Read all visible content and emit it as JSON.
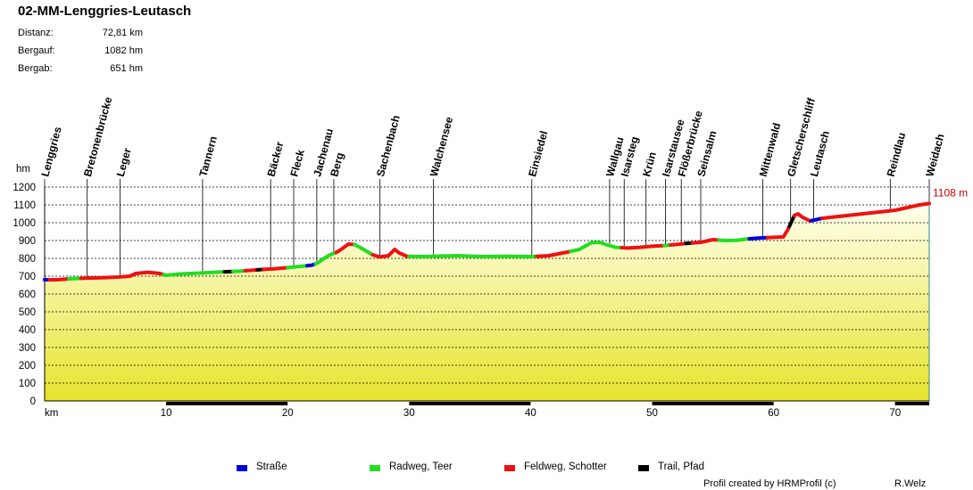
{
  "title": "02-MM-Lenggries-Leutasch",
  "stats": [
    {
      "label": "Distanz:",
      "value": "72,81 km"
    },
    {
      "label": "Bergauf:",
      "value": "1082 hm"
    },
    {
      "label": "Bergab:",
      "value": "651 hm"
    }
  ],
  "colors": {
    "strasse": "#0000dd",
    "radweg": "#22dd22",
    "feldweg": "#ee1111",
    "trail": "#000000",
    "end_label": "#cc0000",
    "fill_top": "#ffffee",
    "fill_bottom": "#e6e42c"
  },
  "chart_data": {
    "type": "area",
    "xlabel": "km",
    "ylabel": "hm",
    "xlim": [
      0,
      72.81
    ],
    "ylim": [
      0,
      1200
    ],
    "x_ticks": [
      10,
      20,
      30,
      40,
      50,
      60,
      70
    ],
    "y_ticks": [
      0,
      100,
      200,
      300,
      400,
      500,
      600,
      700,
      800,
      900,
      1000,
      1100,
      1200
    ],
    "grid": true,
    "end_label": "1108 m",
    "profile": [
      [
        0,
        680
      ],
      [
        1,
        680
      ],
      [
        2,
        685
      ],
      [
        3,
        688
      ],
      [
        4,
        690
      ],
      [
        5,
        692
      ],
      [
        6,
        695
      ],
      [
        7,
        700
      ],
      [
        7.5,
        715
      ],
      [
        8.5,
        722
      ],
      [
        9.5,
        715
      ],
      [
        10,
        705
      ],
      [
        11,
        712
      ],
      [
        12,
        715
      ],
      [
        13,
        718
      ],
      [
        14,
        722
      ],
      [
        15,
        725
      ],
      [
        16,
        728
      ],
      [
        17,
        733
      ],
      [
        18,
        738
      ],
      [
        19,
        742
      ],
      [
        20,
        748
      ],
      [
        21,
        755
      ],
      [
        22,
        762
      ],
      [
        22.5,
        775
      ],
      [
        23,
        800
      ],
      [
        23.5,
        820
      ],
      [
        24,
        833
      ],
      [
        24.5,
        855
      ],
      [
        25,
        880
      ],
      [
        25.5,
        878
      ],
      [
        26,
        860
      ],
      [
        26.5,
        840
      ],
      [
        27,
        820
      ],
      [
        27.6,
        808
      ],
      [
        28.3,
        815
      ],
      [
        28.8,
        850
      ],
      [
        29.2,
        830
      ],
      [
        29.8,
        812
      ],
      [
        31,
        810
      ],
      [
        32,
        812
      ],
      [
        34,
        815
      ],
      [
        36,
        810
      ],
      [
        38,
        812
      ],
      [
        40,
        810
      ],
      [
        41.5,
        815
      ],
      [
        43,
        835
      ],
      [
        44,
        850
      ],
      [
        45,
        888
      ],
      [
        45.7,
        890
      ],
      [
        46.3,
        875
      ],
      [
        47,
        862
      ],
      [
        48,
        858
      ],
      [
        49,
        862
      ],
      [
        50,
        868
      ],
      [
        51,
        872
      ],
      [
        52,
        878
      ],
      [
        53,
        885
      ],
      [
        54,
        890
      ],
      [
        55,
        905
      ],
      [
        56,
        900
      ],
      [
        57,
        902
      ],
      [
        58,
        910
      ],
      [
        59,
        915
      ],
      [
        60,
        918
      ],
      [
        60.8,
        920
      ],
      [
        61.2,
        965
      ],
      [
        61.7,
        1040
      ],
      [
        62,
        1050
      ],
      [
        62.4,
        1030
      ],
      [
        63,
        1010
      ],
      [
        64,
        1025
      ],
      [
        66,
        1040
      ],
      [
        68,
        1055
      ],
      [
        70,
        1070
      ],
      [
        71,
        1085
      ],
      [
        72,
        1100
      ],
      [
        72.81,
        1108
      ]
    ],
    "segments": [
      {
        "type": "strasse",
        "from": 0,
        "to": 0.4
      },
      {
        "type": "feldweg",
        "from": 0.4,
        "to": 2
      },
      {
        "type": "radweg",
        "from": 2,
        "to": 3
      },
      {
        "type": "feldweg",
        "from": 3,
        "to": 7.5
      },
      {
        "type": "feldweg",
        "from": 7.5,
        "to": 9.8
      },
      {
        "type": "radweg",
        "from": 9.8,
        "to": 14.8
      },
      {
        "type": "trail",
        "from": 14.8,
        "to": 15.5
      },
      {
        "type": "radweg",
        "from": 15.5,
        "to": 16.5
      },
      {
        "type": "feldweg",
        "from": 16.5,
        "to": 17.5
      },
      {
        "type": "trail",
        "from": 17.5,
        "to": 18
      },
      {
        "type": "feldweg",
        "from": 18,
        "to": 20
      },
      {
        "type": "radweg",
        "from": 20,
        "to": 21.6
      },
      {
        "type": "strasse",
        "from": 21.6,
        "to": 22.3
      },
      {
        "type": "radweg",
        "from": 22.3,
        "to": 24
      },
      {
        "type": "feldweg",
        "from": 24,
        "to": 25.5
      },
      {
        "type": "radweg",
        "from": 25.5,
        "to": 27
      },
      {
        "type": "feldweg",
        "from": 27,
        "to": 30
      },
      {
        "type": "radweg",
        "from": 30,
        "to": 40.5
      },
      {
        "type": "feldweg",
        "from": 40.5,
        "to": 43.3
      },
      {
        "type": "radweg",
        "from": 43.3,
        "to": 47.5
      },
      {
        "type": "feldweg",
        "from": 47.5,
        "to": 51
      },
      {
        "type": "radweg",
        "from": 51,
        "to": 51.5
      },
      {
        "type": "feldweg",
        "from": 51.5,
        "to": 52.8
      },
      {
        "type": "trail",
        "from": 52.8,
        "to": 53.3
      },
      {
        "type": "feldweg",
        "from": 53.3,
        "to": 55.5
      },
      {
        "type": "radweg",
        "from": 55.5,
        "to": 58
      },
      {
        "type": "strasse",
        "from": 58,
        "to": 59.5
      },
      {
        "type": "feldweg",
        "from": 59.5,
        "to": 61.3
      },
      {
        "type": "trail",
        "from": 61.3,
        "to": 61.7
      },
      {
        "type": "feldweg",
        "from": 61.7,
        "to": 63.1
      },
      {
        "type": "strasse",
        "from": 63.1,
        "to": 64
      },
      {
        "type": "feldweg",
        "from": 64,
        "to": 72.81
      }
    ],
    "waypoints": [
      {
        "name": "Lenggries",
        "km": 0
      },
      {
        "name": "Bretonenbrücke",
        "km": 3.5
      },
      {
        "name": "Leger",
        "km": 6.2
      },
      {
        "name": "Tannern",
        "km": 13
      },
      {
        "name": "Bäcker",
        "km": 18.6
      },
      {
        "name": "Fleck",
        "km": 20.5
      },
      {
        "name": "Jachenau",
        "km": 22.4
      },
      {
        "name": "Berg",
        "km": 23.8
      },
      {
        "name": "Sachenbach",
        "km": 27.6
      },
      {
        "name": "Walchensee",
        "km": 32
      },
      {
        "name": "Einsiedel",
        "km": 40.1
      },
      {
        "name": "Wallgau",
        "km": 46.5
      },
      {
        "name": "Isarsteg",
        "km": 47.7
      },
      {
        "name": "Krün",
        "km": 49.5
      },
      {
        "name": "Isarstausee",
        "km": 51.1
      },
      {
        "name": "Flößerbrücke",
        "km": 52.4
      },
      {
        "name": "Seinsalm",
        "km": 54
      },
      {
        "name": "Mittenwald",
        "km": 59.1
      },
      {
        "name": "Gletscherschliff",
        "km": 61.4
      },
      {
        "name": "Leutasch",
        "km": 63.3
      },
      {
        "name": "Reindlau",
        "km": 69.6
      },
      {
        "name": "Weidach",
        "km": 72.81
      }
    ]
  },
  "legend": [
    {
      "key": "strasse",
      "label": "Straße"
    },
    {
      "key": "radweg",
      "label": "Radweg, Teer"
    },
    {
      "key": "feldweg",
      "label": "Feldweg, Schotter"
    },
    {
      "key": "trail",
      "label": "Trail, Pfad"
    }
  ],
  "footer": {
    "credit": "Profil created by HRMProfil (c)",
    "author": "R.Welz"
  }
}
